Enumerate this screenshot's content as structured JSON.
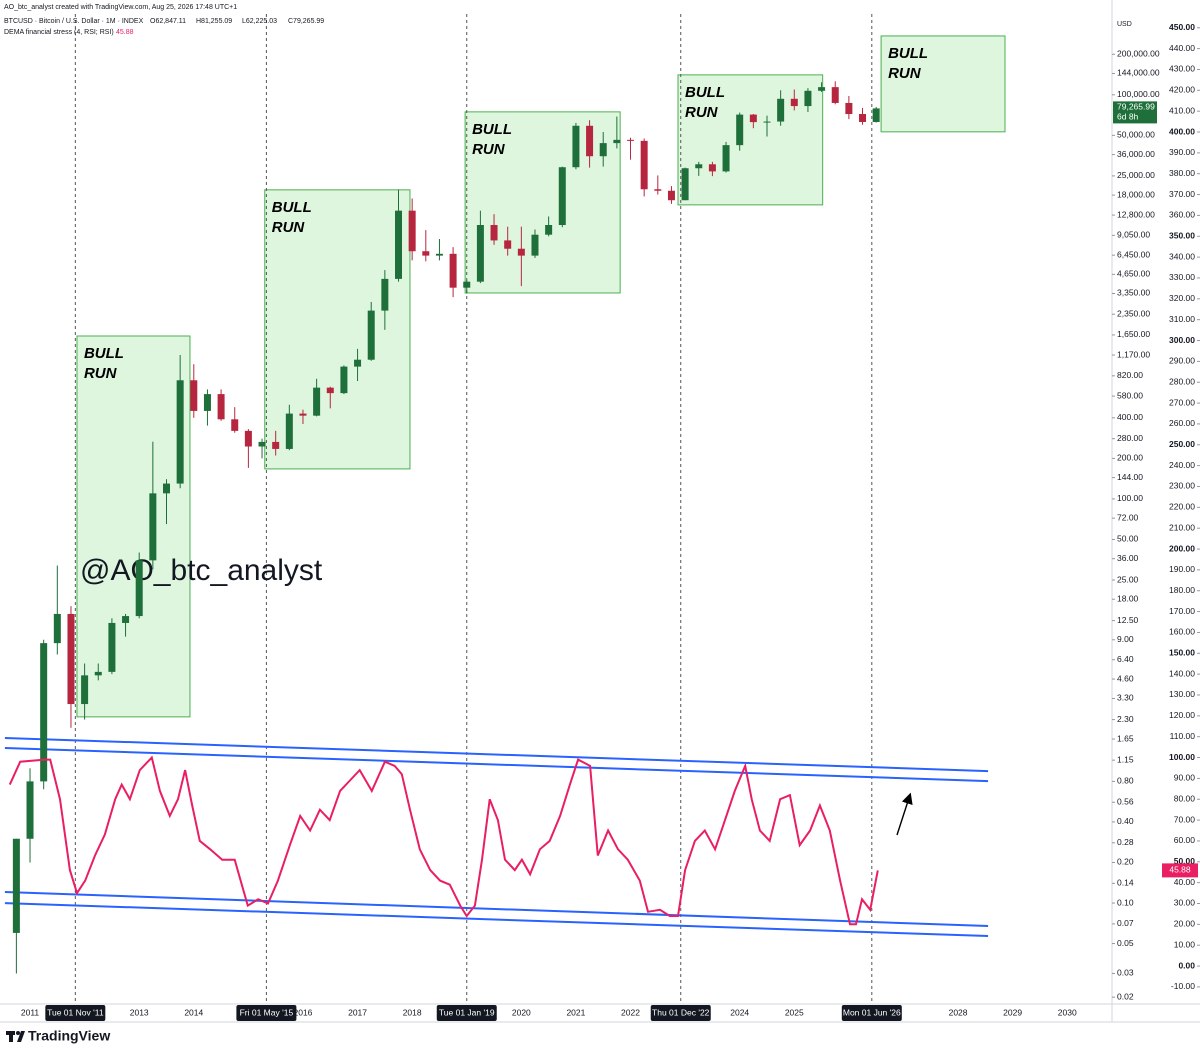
{
  "header": {
    "credit": "AO_btc_analyst created with TradingView.com, Aug 25, 2026 17:48 UTC+1",
    "symbol": "BTCUSD · Bitcoin / U.S. Dollar · 1M · INDEX",
    "ohlc_labels": [
      "O62,847.11",
      "H81,255.09",
      "L62,225.03",
      "C79,265.99"
    ],
    "currency": "USD"
  },
  "footer": {
    "brand": "TradingView"
  },
  "chart_data": {
    "type": "candlestick",
    "watermark": "@AO_btc_analyst",
    "log_y": true,
    "grid": false,
    "up_color": "#1e6f3a",
    "down_color": "#b7263f",
    "xlim": [
      2010.45,
      2030.82
    ],
    "xticks": [
      2011,
      2013,
      2014,
      2016,
      2017,
      2018,
      2020,
      2021,
      2022,
      2024,
      2025,
      2028,
      2029,
      2030
    ],
    "highlight_dates": [
      {
        "value": 2011.83,
        "label": "Tue 01 Nov '11"
      },
      {
        "value": 2015.33,
        "label": "Fri 01 May '15"
      },
      {
        "value": 2019.0,
        "label": "Tue 01 Jan '19"
      },
      {
        "value": 2022.92,
        "label": "Thu 01 Dec '22"
      },
      {
        "value": 2026.42,
        "label": "Mon 01 Jun '26"
      }
    ],
    "ylim": [
      0.0178,
      398000
    ],
    "yticks": [
      {
        "value": 200000,
        "label": "200,000.00"
      },
      {
        "value": 144000,
        "label": "144,000.00"
      },
      {
        "value": 100000,
        "label": "100,000.00"
      },
      {
        "value": 50000,
        "label": "50,000.00"
      },
      {
        "value": 36000,
        "label": "36,000.00"
      },
      {
        "value": 25000,
        "label": "25,000.00"
      },
      {
        "value": 18000,
        "label": "18,000.00"
      },
      {
        "value": 12800,
        "label": "12,800.00"
      },
      {
        "value": 9050,
        "label": "9,050.00"
      },
      {
        "value": 6450,
        "label": "6,450.00"
      },
      {
        "value": 4650,
        "label": "4,650.00"
      },
      {
        "value": 3350,
        "label": "3,350.00"
      },
      {
        "value": 2350,
        "label": "2,350.00"
      },
      {
        "value": 1650,
        "label": "1,650.00"
      },
      {
        "value": 1170,
        "label": "1,170.00"
      },
      {
        "value": 820,
        "label": "820.00"
      },
      {
        "value": 580,
        "label": "580.00"
      },
      {
        "value": 400,
        "label": "400.00"
      },
      {
        "value": 280,
        "label": "280.00"
      },
      {
        "value": 200,
        "label": "200.00"
      },
      {
        "value": 144,
        "label": "144.00"
      },
      {
        "value": 100,
        "label": "100.00"
      },
      {
        "value": 72,
        "label": "72.00"
      },
      {
        "value": 50,
        "label": "50.00"
      },
      {
        "value": 36,
        "label": "36.00"
      },
      {
        "value": 25,
        "label": "25.00"
      },
      {
        "value": 18,
        "label": "18.00"
      },
      {
        "value": 12.5,
        "label": "12.50"
      },
      {
        "value": 9,
        "label": "9.00"
      },
      {
        "value": 6.4,
        "label": "6.40"
      },
      {
        "value": 4.6,
        "label": "4.60"
      },
      {
        "value": 3.3,
        "label": "3.30"
      },
      {
        "value": 2.3,
        "label": "2.30"
      },
      {
        "value": 1.65,
        "label": "1.65"
      },
      {
        "value": 1.15,
        "label": "1.15"
      },
      {
        "value": 0.8,
        "label": "0.80"
      },
      {
        "value": 0.56,
        "label": "0.56"
      },
      {
        "value": 0.4,
        "label": "0.40"
      },
      {
        "value": 0.28,
        "label": "0.28"
      },
      {
        "value": 0.2,
        "label": "0.20"
      },
      {
        "value": 0.14,
        "label": "0.14"
      },
      {
        "value": 0.1,
        "label": "0.10"
      },
      {
        "value": 0.07,
        "label": "0.07"
      },
      {
        "value": 0.05,
        "label": "0.05"
      },
      {
        "value": 0.03,
        "label": "0.03"
      },
      {
        "value": 0.02,
        "label": "0.02"
      }
    ],
    "y2lim": [
      -18.2,
      456.6
    ],
    "y2ticks": [
      {
        "value": 450,
        "label": "450.00"
      },
      {
        "value": 440,
        "label": "440.00"
      },
      {
        "value": 430,
        "label": "430.00"
      },
      {
        "value": 420,
        "label": "420.00"
      },
      {
        "value": 410,
        "label": "410.00"
      },
      {
        "value": 400,
        "label": "400.00"
      },
      {
        "value": 390,
        "label": "390.00"
      },
      {
        "value": 380,
        "label": "380.00"
      },
      {
        "value": 370,
        "label": "370.00"
      },
      {
        "value": 360,
        "label": "360.00"
      },
      {
        "value": 350,
        "label": "350.00"
      },
      {
        "value": 340,
        "label": "340.00"
      },
      {
        "value": 330,
        "label": "330.00"
      },
      {
        "value": 320,
        "label": "320.00"
      },
      {
        "value": 310,
        "label": "310.00"
      },
      {
        "value": 300,
        "label": "300.00"
      },
      {
        "value": 290,
        "label": "290.00"
      },
      {
        "value": 280,
        "label": "280.00"
      },
      {
        "value": 270,
        "label": "270.00"
      },
      {
        "value": 260,
        "label": "260.00"
      },
      {
        "value": 250,
        "label": "250.00"
      },
      {
        "value": 240,
        "label": "240.00"
      },
      {
        "value": 230,
        "label": "230.00"
      },
      {
        "value": 220,
        "label": "220.00"
      },
      {
        "value": 210,
        "label": "210.00"
      },
      {
        "value": 200,
        "label": "200.00"
      },
      {
        "value": 190,
        "label": "190.00"
      },
      {
        "value": 180,
        "label": "180.00"
      },
      {
        "value": 170,
        "label": "170.00"
      },
      {
        "value": 160,
        "label": "160.00"
      },
      {
        "value": 150,
        "label": "150.00"
      },
      {
        "value": 140,
        "label": "140.00"
      },
      {
        "value": 130,
        "label": "130.00"
      },
      {
        "value": 120,
        "label": "120.00"
      },
      {
        "value": 110,
        "label": "110.00"
      },
      {
        "value": 100,
        "label": "100.00"
      },
      {
        "value": 90,
        "label": "90.00"
      },
      {
        "value": 80,
        "label": "80.00"
      },
      {
        "value": 70,
        "label": "70.00"
      },
      {
        "value": 60,
        "label": "60.00"
      },
      {
        "value": 50,
        "label": "50.00"
      },
      {
        "value": 40,
        "label": "40.00"
      },
      {
        "value": 30,
        "label": "30.00"
      },
      {
        "value": 20,
        "label": "20.00"
      },
      {
        "value": 10,
        "label": "10.00"
      },
      {
        "value": 0,
        "label": "0.00"
      },
      {
        "value": -10,
        "label": "-10.00"
      }
    ],
    "candles": {
      "x": [
        2010.75,
        2011,
        2011.25,
        2011.5,
        2011.75,
        2012,
        2012.25,
        2012.5,
        2012.75,
        2013,
        2013.25,
        2013.5,
        2013.75,
        2014,
        2014.25,
        2014.5,
        2014.75,
        2015,
        2015.25,
        2015.5,
        2015.75,
        2016,
        2016.25,
        2016.5,
        2016.75,
        2017,
        2017.25,
        2017.5,
        2017.75,
        2018,
        2018.25,
        2018.5,
        2018.75,
        2019,
        2019.25,
        2019.5,
        2019.75,
        2020,
        2020.25,
        2020.5,
        2020.75,
        2021,
        2021.25,
        2021.5,
        2021.75,
        2022,
        2022.25,
        2022.5,
        2022.75,
        2023,
        2023.25,
        2023.5,
        2023.75,
        2024,
        2024.25,
        2024.5,
        2024.75,
        2025,
        2025.25,
        2025.5,
        2025.75,
        2026,
        2026.25,
        2026.5
      ],
      "open": [
        0.06,
        0.3,
        0.8,
        8.5,
        14,
        3.0,
        4.9,
        5.2,
        12,
        13.5,
        35,
        110,
        130,
        760,
        450,
        600,
        390,
        320,
        245,
        265,
        235,
        430,
        415,
        670,
        610,
        960,
        1080,
        2500,
        4300,
        13800,
        6900,
        6400,
        6600,
        3700,
        4100,
        10800,
        8300,
        7200,
        6400,
        9150,
        10800,
        29000,
        58900,
        35000,
        43800,
        46300,
        45500,
        19900,
        19400,
        16500,
        28500,
        30500,
        27000,
        42300,
        71300,
        62700,
        63300,
        93400,
        82500,
        107100,
        114000,
        87000,
        72000,
        62847.11
      ],
      "high": [
        0.3,
        1.0,
        9,
        32,
        16,
        6,
        6,
        13,
        14,
        40,
        266,
        140,
        1170,
        1000,
        650,
        650,
        480,
        330,
        280,
        320,
        500,
        460,
        780,
        680,
        980,
        1300,
        2900,
        5000,
        19800,
        17000,
        9900,
        8500,
        7400,
        4200,
        13800,
        13000,
        10500,
        10500,
        10000,
        12500,
        29300,
        61800,
        64800,
        52900,
        69000,
        48000,
        47400,
        25200,
        21000,
        28800,
        31800,
        31800,
        44700,
        73800,
        72000,
        70000,
        108000,
        109500,
        112000,
        124000,
        126000,
        98000,
        80000,
        81255.09
      ],
      "low": [
        0.03,
        0.2,
        0.7,
        7,
        2,
        2.3,
        4.5,
        5,
        9.5,
        13,
        30,
        65,
        120,
        400,
        350,
        380,
        310,
        170,
        200,
        210,
        230,
        360,
        410,
        470,
        600,
        750,
        1060,
        1800,
        4100,
        5900,
        5800,
        5900,
        3150,
        3350,
        4000,
        7700,
        6400,
        3800,
        6150,
        8900,
        10400,
        28000,
        28800,
        29300,
        40000,
        33000,
        17600,
        18200,
        15500,
        16500,
        25000,
        24900,
        26500,
        38500,
        56500,
        49000,
        58900,
        76600,
        74500,
        105000,
        85000,
        66000,
        60000,
        62225.03
      ],
      "close": [
        0.3,
        0.8,
        8.5,
        14,
        3.0,
        4.9,
        5.2,
        12,
        13.5,
        35,
        110,
        130,
        760,
        450,
        600,
        390,
        320,
        245,
        265,
        235,
        430,
        415,
        670,
        610,
        960,
        1080,
        2500,
        4300,
        13800,
        6900,
        6400,
        6600,
        3700,
        4100,
        10800,
        8300,
        7200,
        6400,
        9150,
        10800,
        29000,
        58900,
        35000,
        43800,
        46300,
        45500,
        19900,
        19400,
        16500,
        28500,
        30500,
        27000,
        42300,
        71300,
        62700,
        63300,
        93400,
        82500,
        107100,
        114000,
        87000,
        72000,
        62847.11,
        79265.99
      ],
      "last_label": "79,265.99",
      "countdown": "6d 8h"
    },
    "series": [
      {
        "name": "DEMA financial stress (4, RSI; RSI)",
        "color": "#e91e63",
        "axis": "y2",
        "x": [
          2010.63,
          2010.82,
          2011.27,
          2011.37,
          2011.55,
          2011.73,
          2011.86,
          2012.01,
          2012.19,
          2012.37,
          2012.56,
          2012.68,
          2012.83,
          2013.01,
          2013.23,
          2013.38,
          2013.56,
          2013.71,
          2013.84,
          2013.97,
          2014.11,
          2014.3,
          2014.52,
          2014.75,
          2014.88,
          2014.99,
          2015.18,
          2015.36,
          2015.54,
          2015.76,
          2015.95,
          2016.13,
          2016.31,
          2016.49,
          2016.68,
          2016.86,
          2017.04,
          2017.26,
          2017.5,
          2017.68,
          2017.81,
          2017.96,
          2018.14,
          2018.33,
          2018.51,
          2018.69,
          2018.88,
          2019.0,
          2019.15,
          2019.28,
          2019.42,
          2019.57,
          2019.7,
          2019.88,
          2020.01,
          2020.16,
          2020.34,
          2020.52,
          2020.71,
          2020.89,
          2021.04,
          2021.26,
          2021.4,
          2021.59,
          2021.77,
          2021.95,
          2022.17,
          2022.32,
          2022.54,
          2022.72,
          2022.87,
          2023.0,
          2023.18,
          2023.36,
          2023.55,
          2023.73,
          2023.91,
          2024.1,
          2024.22,
          2024.37,
          2024.55,
          2024.74,
          2024.92,
          2025.1,
          2025.29,
          2025.47,
          2025.65,
          2025.84,
          2026.02,
          2026.13,
          2026.24,
          2026.39,
          2026.53
        ],
        "values": [
          87,
          98,
          99,
          99,
          80,
          46,
          35,
          41,
          53,
          63,
          80,
          87,
          80,
          94,
          100,
          84,
          72,
          80,
          94,
          77,
          60,
          56,
          51,
          51,
          39,
          29,
          32,
          30,
          41,
          58,
          72,
          65,
          75,
          70,
          84,
          89,
          94,
          84,
          98,
          96,
          92,
          75,
          56,
          46,
          41,
          39,
          29,
          24,
          29,
          51,
          80,
          70,
          51,
          46,
          51,
          44,
          56,
          60,
          72,
          87,
          99,
          96,
          53,
          65,
          56,
          51,
          41,
          26,
          27,
          24,
          24,
          46,
          60,
          65,
          56,
          70,
          84,
          96,
          80,
          65,
          60,
          80,
          82,
          58,
          65,
          77,
          65,
          41,
          20,
          20,
          32,
          27,
          45.88
        ]
      }
    ],
    "trendline_color": "#2962ff",
    "trendlines": [
      {
        "x": [
          2010.54,
          2028.55
        ],
        "values": [
          109.4,
          93.5
        ]
      },
      {
        "x": [
          2010.54,
          2028.55
        ],
        "values": [
          104.6,
          88.7
        ]
      },
      {
        "x": [
          2010.54,
          2028.55
        ],
        "values": [
          35.5,
          19.2
        ]
      },
      {
        "x": [
          2010.54,
          2028.55
        ],
        "values": [
          30.2,
          14.4
        ]
      }
    ],
    "box_color": "#4caf50",
    "boxes": [
      {
        "x": [
          2011.86,
          2013.93
        ],
        "y": [
          2.41,
          1620
        ],
        "label": [
          "BULL",
          "RUN"
        ]
      },
      {
        "x": [
          2015.3,
          2017.96
        ],
        "y": [
          167,
          19700
        ],
        "label": [
          "BULL",
          "RUN"
        ]
      },
      {
        "x": [
          2018.97,
          2021.81
        ],
        "y": [
          3380,
          74700
        ],
        "label": [
          "BULL",
          "RUN"
        ]
      },
      {
        "x": [
          2022.87,
          2025.52
        ],
        "y": [
          15240,
          140600
        ],
        "label": [
          "BULL",
          "RUN"
        ]
      },
      {
        "x": [
          2026.59,
          2028.86
        ],
        "y": [
          53100,
          273500
        ],
        "label": [
          "BULL",
          "RUN"
        ]
      }
    ]
  }
}
